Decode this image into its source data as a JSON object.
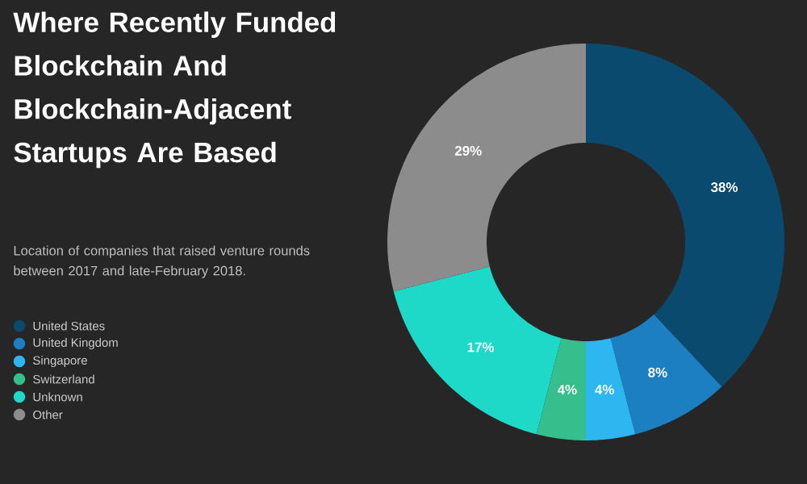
{
  "chart_data": {
    "type": "donut",
    "title": "Where Recently Funded Blockchain And Blockchain-Adjacent Startups Are Based",
    "subtitle": "Location of companies that raised venture rounds between 2017 and late-February 2018.",
    "categories": [
      "United States",
      "United Kingdom",
      "Singapore",
      "Switzerland",
      "Unknown",
      "Other"
    ],
    "values": [
      38,
      8,
      4,
      4,
      17,
      29
    ],
    "value_labels": [
      "38%",
      "8%",
      "4%",
      "4%",
      "17%",
      "29%"
    ],
    "colors": [
      "#0b4a6f",
      "#1b7fc2",
      "#2db6ef",
      "#37be8d",
      "#1ed8c8",
      "#8c8c8c"
    ],
    "legend": "left"
  }
}
